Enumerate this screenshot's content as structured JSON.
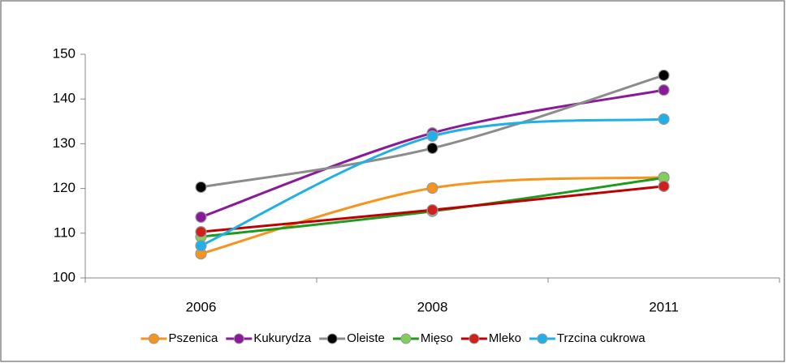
{
  "chart_data": {
    "type": "line",
    "smooth": true,
    "categories": [
      "2006",
      "2008",
      "2011"
    ],
    "ylim": [
      100,
      150
    ],
    "yticks": [
      100,
      110,
      120,
      130,
      140,
      150
    ],
    "grid": false,
    "legend": "bottom",
    "series": [
      {
        "name": "Pszenica",
        "color": "#f7941d",
        "marker_color": "#f7941d",
        "values": [
          105.4,
          120.1,
          122.5
        ]
      },
      {
        "name": "Kukurydza",
        "color": "#8b1a9b",
        "marker_color": "#8b1a9b",
        "values": [
          113.6,
          132.4,
          142
        ]
      },
      {
        "name": "Oleiste",
        "color": "#8c8c8c",
        "marker_color": "#000000",
        "values": [
          120.3,
          129,
          145.3
        ]
      },
      {
        "name": "Mięso",
        "color": "#1e9a1e",
        "marker_color": "#7fcf58",
        "values": [
          109.2,
          114.9,
          122.4
        ]
      },
      {
        "name": "Mleko",
        "color": "#c00000",
        "marker_color": "#d0201e",
        "values": [
          110.3,
          115.2,
          120.5
        ]
      },
      {
        "name": "Trzcina cukrowa",
        "color": "#1fb0e8",
        "marker_color": "#1fb0e8",
        "values": [
          107.2,
          131.7,
          135.5
        ]
      }
    ]
  }
}
